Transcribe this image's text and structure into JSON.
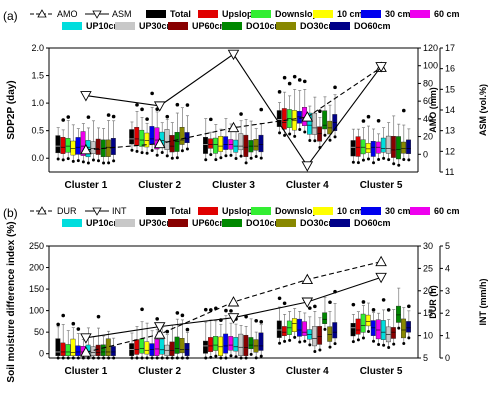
{
  "chart_data": [
    {
      "panel_label": "(a)",
      "type": "box",
      "categories": [
        "Cluster 1",
        "Cluster 2",
        "Cluster 3",
        "Cluster 4",
        "Cluster 5"
      ],
      "ylabel_left": "SDP2P (day)",
      "ylabel_right_1": "AMO (mm)",
      "ylabel_right_2": "ASM (vol.%)",
      "ylim_left": [
        -0.25,
        2.0
      ],
      "yticks_left": [
        "0.0",
        "0.5",
        "1.0",
        "1.5",
        "2.0"
      ],
      "ylim_right_1": [
        -20,
        120
      ],
      "yticks_right_1": [
        "0",
        "20",
        "40",
        "60",
        "80",
        "100",
        "120"
      ],
      "ylim_right_2": [
        11,
        17
      ],
      "yticks_right_2": [
        "11",
        "12",
        "13",
        "14",
        "15",
        "16",
        "17"
      ],
      "legend_lines": [
        {
          "name": "AMO",
          "marker": "triangle-up",
          "dash": true
        },
        {
          "name": "ASM",
          "marker": "triangle-down",
          "dash": false
        }
      ],
      "box_series": [
        {
          "name": "Total",
          "color": "#000000"
        },
        {
          "name": "Upslope",
          "color": "#e00000"
        },
        {
          "name": "Downslope",
          "color": "#33ee33"
        },
        {
          "name": "10 cm",
          "color": "#ffff00"
        },
        {
          "name": "30 cm",
          "color": "#0000ee"
        },
        {
          "name": "60 cm",
          "color": "#ee00ee"
        },
        {
          "name": "UP10cm",
          "color": "#00dddd"
        },
        {
          "name": "UP30cm",
          "color": "#c8c8c8"
        },
        {
          "name": "UP60cm",
          "color": "#880000"
        },
        {
          "name": "DO10cm",
          "color": "#008800"
        },
        {
          "name": "DO30cm",
          "color": "#888800"
        },
        {
          "name": "DO60cm",
          "color": "#000088"
        }
      ],
      "box_medians": [
        [
          0.22,
          0.2,
          0.22,
          0.18,
          0.2,
          0.22,
          0.2,
          0.18,
          0.16,
          0.18,
          0.2,
          0.2
        ],
        [
          0.35,
          0.35,
          0.33,
          0.32,
          0.35,
          0.33,
          0.32,
          0.3,
          0.22,
          0.3,
          0.33,
          0.35
        ],
        [
          0.25,
          0.25,
          0.25,
          0.22,
          0.25,
          0.25,
          0.22,
          0.22,
          0.2,
          0.22,
          0.22,
          0.25
        ],
        [
          0.7,
          0.65,
          0.72,
          0.68,
          0.75,
          0.7,
          0.6,
          0.55,
          0.45,
          0.6,
          0.55,
          0.65
        ],
        [
          0.2,
          0.2,
          0.2,
          0.17,
          0.2,
          0.2,
          0.18,
          0.18,
          0.15,
          0.16,
          0.18,
          0.18
        ]
      ],
      "lines": [
        {
          "name": "AMO",
          "values": [
            5,
            12,
            30,
            42,
            98
          ]
        },
        {
          "name": "ASM",
          "values": [
            14.7,
            14.2,
            16.7,
            11.3,
            16.1
          ]
        }
      ]
    },
    {
      "panel_label": "(b)",
      "type": "box",
      "categories": [
        "Cluster 1",
        "Cluster 2",
        "Cluster 3",
        "Cluster 4",
        "Cluster 5"
      ],
      "ylabel_left": "Soil moisture difference index (%)",
      "ylabel_right_1": "DUR (h)",
      "ylabel_right_2": "INT (mm/h)",
      "ylim_left": [
        -10,
        250
      ],
      "yticks_left": [
        "0",
        "50",
        "100",
        "150",
        "200",
        "250"
      ],
      "ylim_right_1": [
        5,
        30
      ],
      "yticks_right_1": [
        "5",
        "10",
        "15",
        "20",
        "25",
        "30"
      ],
      "ylim_right_2": [
        0,
        5
      ],
      "yticks_right_2": [
        "0",
        "1",
        "2",
        "3",
        "4",
        "5"
      ],
      "legend_lines": [
        {
          "name": "DUR",
          "marker": "triangle-up",
          "dash": true
        },
        {
          "name": "INT",
          "marker": "triangle-down",
          "dash": false
        }
      ],
      "box_series": [
        {
          "name": "Total",
          "color": "#000000"
        },
        {
          "name": "Upslope",
          "color": "#e00000"
        },
        {
          "name": "Downslope",
          "color": "#33ee33"
        },
        {
          "name": "10 cm",
          "color": "#ffff00"
        },
        {
          "name": "30 cm",
          "color": "#0000ee"
        },
        {
          "name": "60 cm",
          "color": "#ee00ee"
        },
        {
          "name": "UP10cm",
          "color": "#00dddd"
        },
        {
          "name": "UP30cm",
          "color": "#c8c8c8"
        },
        {
          "name": "UP60cm",
          "color": "#880000"
        },
        {
          "name": "DO10cm",
          "color": "#008800"
        },
        {
          "name": "DO30cm",
          "color": "#888800"
        },
        {
          "name": "DO60cm",
          "color": "#000088"
        }
      ],
      "box_medians": [
        [
          4,
          4,
          4,
          3,
          4,
          4,
          4,
          3,
          3,
          4,
          4,
          4
        ],
        [
          10,
          10,
          12,
          8,
          10,
          11,
          9,
          8,
          7,
          12,
          10,
          10
        ],
        [
          18,
          18,
          20,
          16,
          18,
          20,
          16,
          15,
          14,
          20,
          18,
          18
        ],
        [
          55,
          50,
          60,
          70,
          55,
          50,
          45,
          35,
          40,
          80,
          45,
          50
        ],
        [
          60,
          55,
          65,
          75,
          60,
          55,
          50,
          45,
          50,
          90,
          55,
          60
        ]
      ],
      "lines": [
        {
          "name": "DUR",
          "values": [
            6.3,
            10.3,
            17.5,
            22.5,
            26.5
          ]
        },
        {
          "name": "INT",
          "values": [
            0.9,
            1.4,
            1.8,
            2.5,
            3.6
          ]
        }
      ]
    }
  ]
}
